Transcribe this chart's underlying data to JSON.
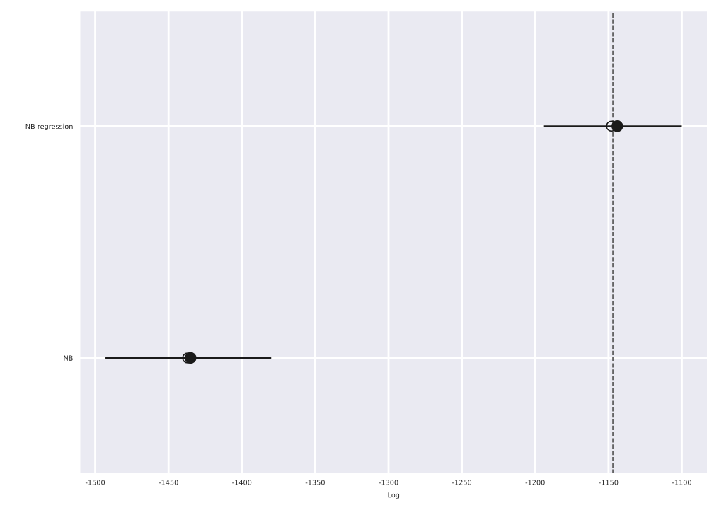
{
  "chart_data": {
    "type": "scatter",
    "orientation": "horizontal",
    "xlabel": "Log",
    "categories": [
      "NB regression",
      "NB"
    ],
    "series": [
      {
        "color": "#1a1a1a",
        "values": [
          -1148,
          -1437
        ],
        "marker": "circle"
      },
      {
        "color": "#1a1a1a",
        "values": [
          -1144,
          -1435
        ],
        "errors": [
          [
            -1194,
            -1100
          ],
          [
            -1493,
            -1380
          ]
        ],
        "marker": "circle"
      }
    ],
    "xlim": [
      -1511,
      -1082
    ],
    "xticks": [
      -1500,
      -1450,
      -1400,
      -1350,
      -1300,
      -1250,
      -1200,
      -1150,
      -1100
    ],
    "ref_lines": [
      {
        "axis": "x",
        "value": -1147,
        "color": "#555555",
        "line_style": "dashed"
      }
    ],
    "grid": true,
    "legend": false
  }
}
